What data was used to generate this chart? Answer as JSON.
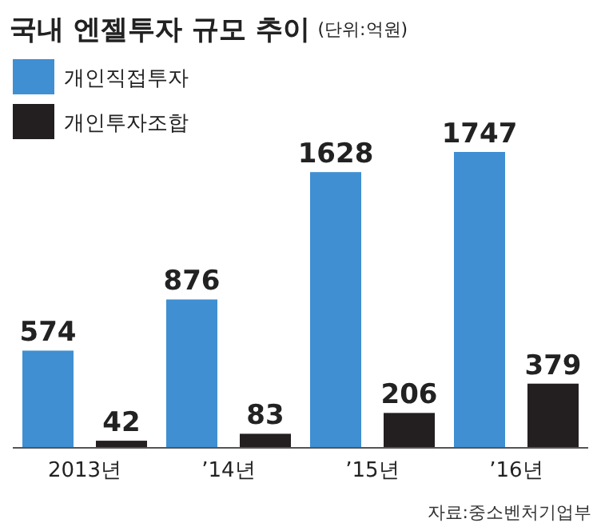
{
  "chart_data": {
    "type": "bar",
    "title": "국내 엔젤투자 규모 추이",
    "subtitle": "(단위:억원)",
    "categories": [
      "2013년",
      "’14년",
      "’15년",
      "’16년"
    ],
    "series": [
      {
        "name": "개인직접투자",
        "color": "#3f8fd2",
        "values": [
          574,
          876,
          1628,
          1747
        ]
      },
      {
        "name": "개인투자조합",
        "color": "#231f20",
        "values": [
          42,
          83,
          206,
          379
        ]
      }
    ],
    "data_labels": true,
    "legend": "top left",
    "annotations": [
      "자료:중소벤처기업부"
    ]
  }
}
